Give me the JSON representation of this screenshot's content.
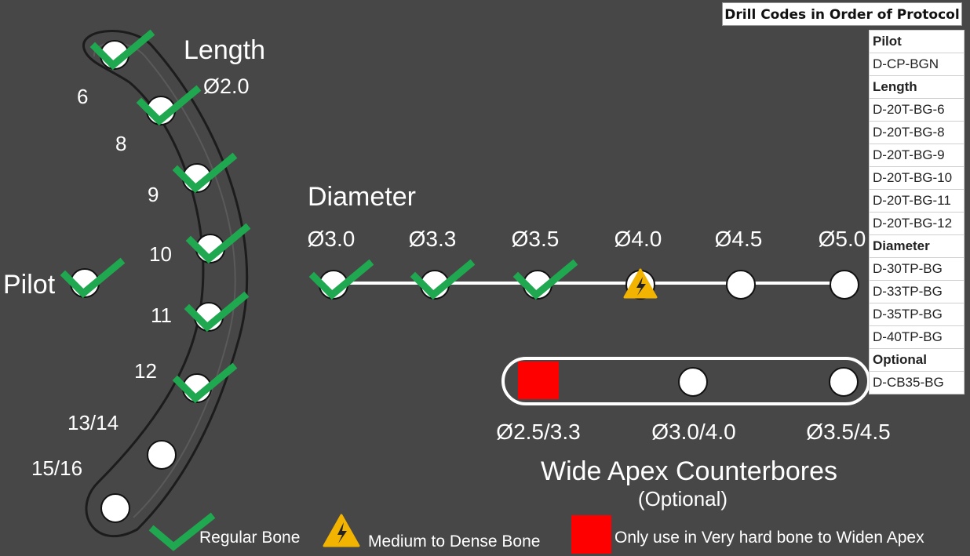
{
  "table": {
    "title": "Drill Codes in Order of Protocol",
    "rows": [
      {
        "text": "Pilot",
        "header": true
      },
      {
        "text": "D-CP-BGN",
        "header": false
      },
      {
        "text": "Length",
        "header": true
      },
      {
        "text": "D-20T-BG-6",
        "header": false
      },
      {
        "text": "D-20T-BG-8",
        "header": false
      },
      {
        "text": "D-20T-BG-9",
        "header": false
      },
      {
        "text": "D-20T-BG-10",
        "header": false
      },
      {
        "text": "D-20T-BG-11",
        "header": false
      },
      {
        "text": "D-20T-BG-12",
        "header": false
      },
      {
        "text": "Diameter",
        "header": true
      },
      {
        "text": "D-30TP-BG",
        "header": false
      },
      {
        "text": "D-33TP-BG",
        "header": false
      },
      {
        "text": "D-35TP-BG",
        "header": false
      },
      {
        "text": "D-40TP-BG",
        "header": false
      },
      {
        "text": "Optional",
        "header": true
      },
      {
        "text": "D-CB35-BG",
        "header": false
      }
    ]
  },
  "pilot": {
    "label": "Pilot",
    "status": "check"
  },
  "length": {
    "title": "Length",
    "diameter": "Ø2.0",
    "steps": [
      {
        "label": "6",
        "status": "check"
      },
      {
        "label": "8",
        "status": "check"
      },
      {
        "label": "9",
        "status": "check"
      },
      {
        "label": "10",
        "status": "check"
      },
      {
        "label": "11",
        "status": "check"
      },
      {
        "label": "12",
        "status": "check"
      },
      {
        "label": "13/14",
        "status": "none"
      },
      {
        "label": "15/16",
        "status": "none"
      }
    ]
  },
  "diameter": {
    "title": "Diameter",
    "steps": [
      {
        "label": "Ø3.0",
        "status": "check"
      },
      {
        "label": "Ø3.3",
        "status": "check"
      },
      {
        "label": "Ø3.5",
        "status": "check"
      },
      {
        "label": "Ø4.0",
        "status": "warning"
      },
      {
        "label": "Ø4.5",
        "status": "none"
      },
      {
        "label": "Ø5.0",
        "status": "none"
      }
    ]
  },
  "counterbores": {
    "title": "Wide Apex Counterbores",
    "subtitle": "(Optional)",
    "steps": [
      {
        "label": "Ø2.5/3.3",
        "status": "square"
      },
      {
        "label": "Ø3.0/4.0",
        "status": "none"
      },
      {
        "label": "Ø3.5/4.5",
        "status": "none"
      }
    ]
  },
  "legend": {
    "regular": "Regular Bone",
    "medium": "Medium to Dense Bone",
    "hard": "Only use in Very hard bone to Widen Apex"
  },
  "colors": {
    "background": "#474747",
    "check": "#1fa84f",
    "warning": "#f2b400",
    "square": "#ff0000"
  }
}
